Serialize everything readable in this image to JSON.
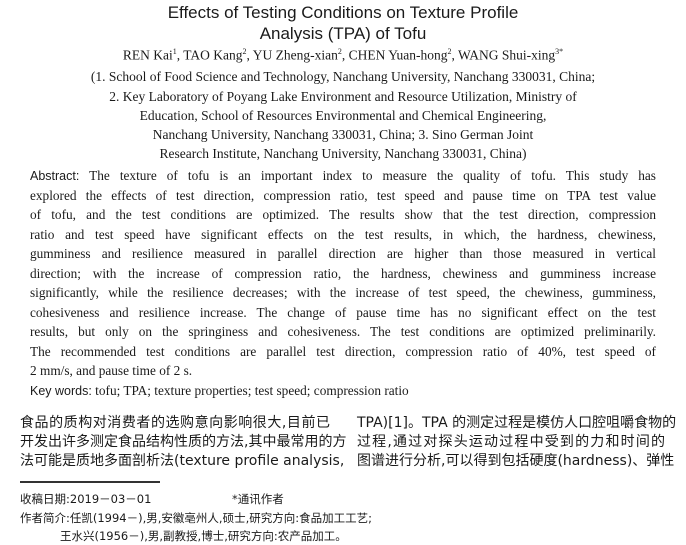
{
  "title": {
    "line1": "Effects of Testing Conditions on Texture Profile",
    "line2": "Analysis (TPA) of Tofu"
  },
  "authors": [
    {
      "name": "REN Kai",
      "sup": "1"
    },
    {
      "name": "TAO Kang",
      "sup": "2"
    },
    {
      "name": "YU Zheng-xian",
      "sup": "2"
    },
    {
      "name": "CHEN Yuan-hong",
      "sup": "2"
    },
    {
      "name": "WANG Shui-xing",
      "sup": "3*"
    }
  ],
  "affiliations": [
    "(1. School of Food Science and Technology, Nanchang University, Nanchang 330031, China;",
    "2. Key Laboratory of Poyang Lake Environment and Resource Utilization, Ministry of",
    "Education, School of Resources Environmental and Chemical Engineering,",
    "Nanchang University, Nanchang 330031, China; 3. Sino German Joint",
    "Research Institute, Nanchang University, Nanchang 330031, China)"
  ],
  "abstract": {
    "label": "Abstract:",
    "lines": [
      "The texture of tofu is an important index to measure the quality of tofu. This study has",
      "explored the effects of test direction, compression ratio, test speed and pause time on TPA test value",
      "of tofu, and the test conditions are optimized. The results show that the test direction, compression",
      "ratio and test speed have significant effects on the test results, in which, the hardness, chewiness,",
      "gumminess and resilience measured in parallel direction are higher than those measured in vertical",
      "direction; with the increase of compression ratio, the hardness, chewiness and gumminess increase",
      "significantly, while the resilience decreases; with the increase of test speed, the chewiness, gumminess,",
      "cohesiveness and resilience increase. The change of pause time has no significant effect on the test",
      "results, but only on the springiness and cohesiveness. The test conditions are optimized preliminarily.",
      "The recommended test conditions are parallel test direction, compression ratio of 40%, test speed of",
      "2 mm/s, and pause time of 2 s."
    ]
  },
  "keywords": {
    "label": "Key words:",
    "text": "tofu; TPA; texture properties; test speed; compression ratio"
  },
  "body": {
    "left": [
      "食品的质构对消费者的选购意向影响很大,目前已",
      "开发出许多测定食品结构性质的方法,其中最常用的方",
      "法可能是质地多面剖析法(texture profile analysis,"
    ],
    "right": [
      "TPA)[1]。TPA 的测定过程是模仿人口腔咀嚼食物的",
      "过程,通过对探头运动过程中受到的力和时间的",
      "图谱进行分析,可以得到包括硬度(hardness)、弹性"
    ]
  },
  "footnotes": {
    "received": "收稿日期:2019－03－01",
    "corresponding": "*通讯作者",
    "bio1": "作者简介:任凯(1994－),男,安徽亳州人,硕士,研究方向:食品加工工艺;",
    "bio2": "王水兴(1956－),男,副教授,博士,研究方向:农产品加工。"
  }
}
